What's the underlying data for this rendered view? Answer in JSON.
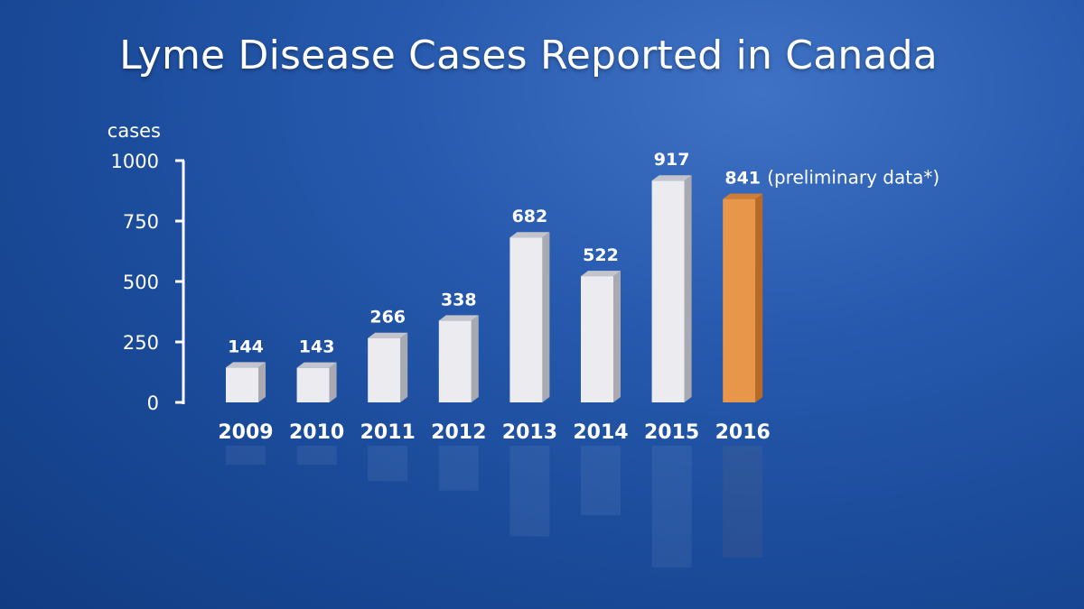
{
  "chart_data": {
    "type": "bar",
    "title": "Lyme Disease Cases Reported in Canada",
    "ylabel": "cases",
    "xlabel": "",
    "categories": [
      "2009",
      "2010",
      "2011",
      "2012",
      "2013",
      "2014",
      "2015",
      "2016"
    ],
    "values": [
      144,
      143,
      266,
      338,
      682,
      522,
      917,
      841
    ],
    "ylim": [
      0,
      1000
    ],
    "yticks": [
      "0",
      "250",
      "500",
      "750",
      "1000"
    ],
    "annotation": "(preliminary data*)",
    "grid": false,
    "colors": {
      "bar": "#ecebf0",
      "bar_side": "#a9a9b1",
      "bar_top": "#c4c4cc",
      "highlight": "#e8964a",
      "highlight_side": "#b86a25",
      "highlight_top": "#cf7d35",
      "background": "#1f4e9e"
    },
    "highlight_category": "2016"
  }
}
